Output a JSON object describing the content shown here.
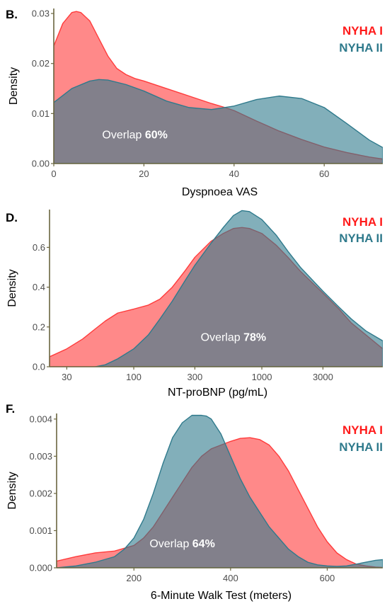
{
  "colors": {
    "nyha1": "#ff3b3b",
    "nyha2": "#2f7a8c",
    "overlap": "#8a6f7f"
  },
  "chart_data": [
    {
      "type": "area",
      "panel_label": "B.",
      "xlabel": "Dyspnoea VAS",
      "ylabel": "Density",
      "xscale": "linear",
      "xlim": [
        0,
        73
      ],
      "ylim": [
        0,
        0.031
      ],
      "xticks": [
        0,
        20,
        40,
        60
      ],
      "xtick_labels": [
        "0",
        "20",
        "40",
        "60"
      ],
      "yticks": [
        0,
        0.01,
        0.02,
        0.03
      ],
      "ytick_labels": [
        "0.00",
        "0.01",
        "0.02",
        "0.03"
      ],
      "legend": [
        "NYHA I",
        "NYHA II"
      ],
      "legend_position": "top-right",
      "annotation": {
        "prefix": "Overlap ",
        "value": "60%",
        "x": 18,
        "y": 0.005
      },
      "series": [
        {
          "name": "NYHA I",
          "x": [
            0,
            2,
            4,
            5,
            6,
            8,
            10,
            12,
            14,
            16,
            18,
            20,
            25,
            30,
            35,
            38,
            40,
            45,
            50,
            55,
            60,
            65,
            70,
            73
          ],
          "y": [
            0.0235,
            0.028,
            0.0302,
            0.0304,
            0.0302,
            0.0285,
            0.025,
            0.0215,
            0.019,
            0.0178,
            0.017,
            0.0165,
            0.015,
            0.0135,
            0.012,
            0.0112,
            0.0106,
            0.0085,
            0.0065,
            0.0048,
            0.0033,
            0.0022,
            0.0013,
            0.0009
          ]
        },
        {
          "name": "NYHA II",
          "x": [
            0,
            4,
            8,
            10,
            12,
            16,
            20,
            25,
            30,
            35,
            40,
            45,
            50,
            55,
            60,
            65,
            70,
            73
          ],
          "y": [
            0.0122,
            0.015,
            0.0165,
            0.0168,
            0.0167,
            0.0158,
            0.0145,
            0.0125,
            0.0112,
            0.0108,
            0.0115,
            0.0128,
            0.0135,
            0.013,
            0.0112,
            0.008,
            0.0047,
            0.0032
          ]
        }
      ]
    },
    {
      "type": "area",
      "panel_label": "D.",
      "xlabel": "NT-proBNP (pg/mL)",
      "ylabel": "Density",
      "xscale": "log10",
      "xlim": [
        22,
        8800
      ],
      "ylim": [
        0,
        0.79
      ],
      "xticks": [
        30,
        100,
        300,
        1000,
        3000
      ],
      "xtick_labels": [
        "30",
        "100",
        "300",
        "1000",
        "3000"
      ],
      "yticks": [
        0,
        0.2,
        0.4,
        0.6
      ],
      "ytick_labels": [
        "0.0",
        "0.2",
        "0.4",
        "0.6"
      ],
      "legend": [
        "NYHA I",
        "NYHA II"
      ],
      "legend_position": "top-right",
      "annotation": {
        "prefix": "Overlap ",
        "value": "78%",
        "x": 600,
        "y": 0.13
      },
      "series": [
        {
          "name": "NYHA I",
          "x": [
            22,
            30,
            40,
            50,
            60,
            75,
            100,
            130,
            160,
            200,
            250,
            300,
            400,
            500,
            600,
            700,
            800,
            1000,
            1300,
            1600,
            2000,
            3000,
            4000,
            5000,
            6500,
            8800
          ],
          "y": [
            0.05,
            0.09,
            0.14,
            0.19,
            0.23,
            0.27,
            0.29,
            0.31,
            0.34,
            0.4,
            0.48,
            0.55,
            0.63,
            0.67,
            0.695,
            0.7,
            0.695,
            0.67,
            0.61,
            0.55,
            0.48,
            0.37,
            0.29,
            0.22,
            0.16,
            0.09
          ]
        },
        {
          "name": "NYHA II",
          "x": [
            50,
            60,
            75,
            100,
            130,
            160,
            200,
            250,
            300,
            400,
            500,
            600,
            700,
            800,
            1000,
            1300,
            1600,
            2000,
            3000,
            4000,
            5000,
            6500,
            8800
          ],
          "y": [
            0.0,
            0.01,
            0.04,
            0.09,
            0.16,
            0.24,
            0.33,
            0.43,
            0.51,
            0.62,
            0.7,
            0.76,
            0.785,
            0.78,
            0.74,
            0.66,
            0.58,
            0.5,
            0.38,
            0.3,
            0.24,
            0.18,
            0.13
          ]
        }
      ]
    },
    {
      "type": "area",
      "panel_label": "F.",
      "xlabel": "6-Minute Walk Test (meters)",
      "ylabel": "Density",
      "xscale": "linear",
      "xlim": [
        40,
        715
      ],
      "ylim": [
        0,
        0.00415
      ],
      "xticks": [
        200,
        400,
        600
      ],
      "xtick_labels": [
        "200",
        "400",
        "600"
      ],
      "yticks": [
        0,
        0.001,
        0.002,
        0.003,
        0.004
      ],
      "ytick_labels": [
        "0.000",
        "0.001",
        "0.002",
        "0.003",
        "0.004"
      ],
      "legend": [
        "NYHA I",
        "NYHA II"
      ],
      "legend_position": "top-right",
      "annotation": {
        "prefix": "Overlap ",
        "value": "64%",
        "x": 300,
        "y": 0.00055
      },
      "series": [
        {
          "name": "NYHA I",
          "x": [
            40,
            80,
            120,
            160,
            200,
            220,
            240,
            260,
            280,
            300,
            320,
            340,
            360,
            380,
            400,
            420,
            440,
            460,
            480,
            500,
            520,
            540,
            560,
            580,
            600,
            620,
            640,
            660,
            680,
            700,
            715
          ],
          "y": [
            0.00018,
            0.0003,
            0.0004,
            0.00045,
            0.0006,
            0.0008,
            0.0011,
            0.0015,
            0.0019,
            0.0023,
            0.0027,
            0.003,
            0.0032,
            0.0033,
            0.0034,
            0.00348,
            0.0035,
            0.00345,
            0.0033,
            0.003,
            0.0026,
            0.0021,
            0.0016,
            0.0011,
            0.0007,
            0.0004,
            0.00022,
            0.0001,
            5e-05,
            2e-05,
            1e-05
          ]
        },
        {
          "name": "NYHA II",
          "x": [
            40,
            80,
            120,
            160,
            180,
            200,
            220,
            240,
            260,
            280,
            300,
            320,
            340,
            350,
            360,
            380,
            400,
            420,
            440,
            460,
            480,
            500,
            520,
            540,
            560,
            580,
            600,
            620,
            640,
            660,
            680,
            700,
            715
          ],
          "y": [
            0.0,
            5e-05,
            0.00015,
            0.0003,
            0.0005,
            0.0008,
            0.0013,
            0.002,
            0.0028,
            0.0035,
            0.0039,
            0.0041,
            0.0041,
            0.00408,
            0.004,
            0.0036,
            0.003,
            0.0024,
            0.0019,
            0.0015,
            0.0011,
            0.0008,
            0.0005,
            0.0003,
            0.00015,
            8e-05,
            5e-05,
            4e-05,
            5e-05,
            0.0001,
            0.00015,
            0.0002,
            0.00022
          ]
        }
      ]
    }
  ]
}
